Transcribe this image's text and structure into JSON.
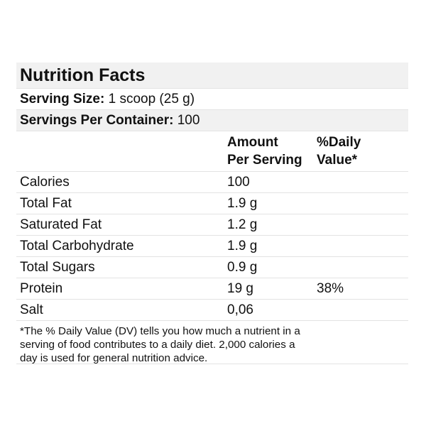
{
  "panel": {
    "title": "Nutrition Facts",
    "serving_size": {
      "label": "Serving Size:",
      "value": "1 scoop (25 g)"
    },
    "servings_per_container": {
      "label": "Servings Per Container:",
      "value": "100"
    },
    "columns": {
      "amount_line1": "Amount",
      "amount_line2": "Per Serving",
      "dv_line1": "%Daily",
      "dv_line2": "Value*"
    },
    "nutrients": [
      {
        "name": "Calories",
        "amount": "100",
        "dv": ""
      },
      {
        "name": "Total Fat",
        "amount": "1.9 g",
        "dv": ""
      },
      {
        "name": "Saturated Fat",
        "amount": "1.2 g",
        "dv": ""
      },
      {
        "name": "Total Carbohydrate",
        "amount": "1.9 g",
        "dv": ""
      },
      {
        "name": "Total Sugars",
        "amount": "0.9 g",
        "dv": ""
      },
      {
        "name": "Protein",
        "amount": "19 g",
        "dv": "38%"
      },
      {
        "name": "Salt",
        "amount": "0,06",
        "dv": ""
      }
    ],
    "footnote": "*The % Daily Value (DV) tells you how much a nutrient in a serving of food contributes to a daily diet. 2,000 calories a day is used for general nutrition advice."
  }
}
